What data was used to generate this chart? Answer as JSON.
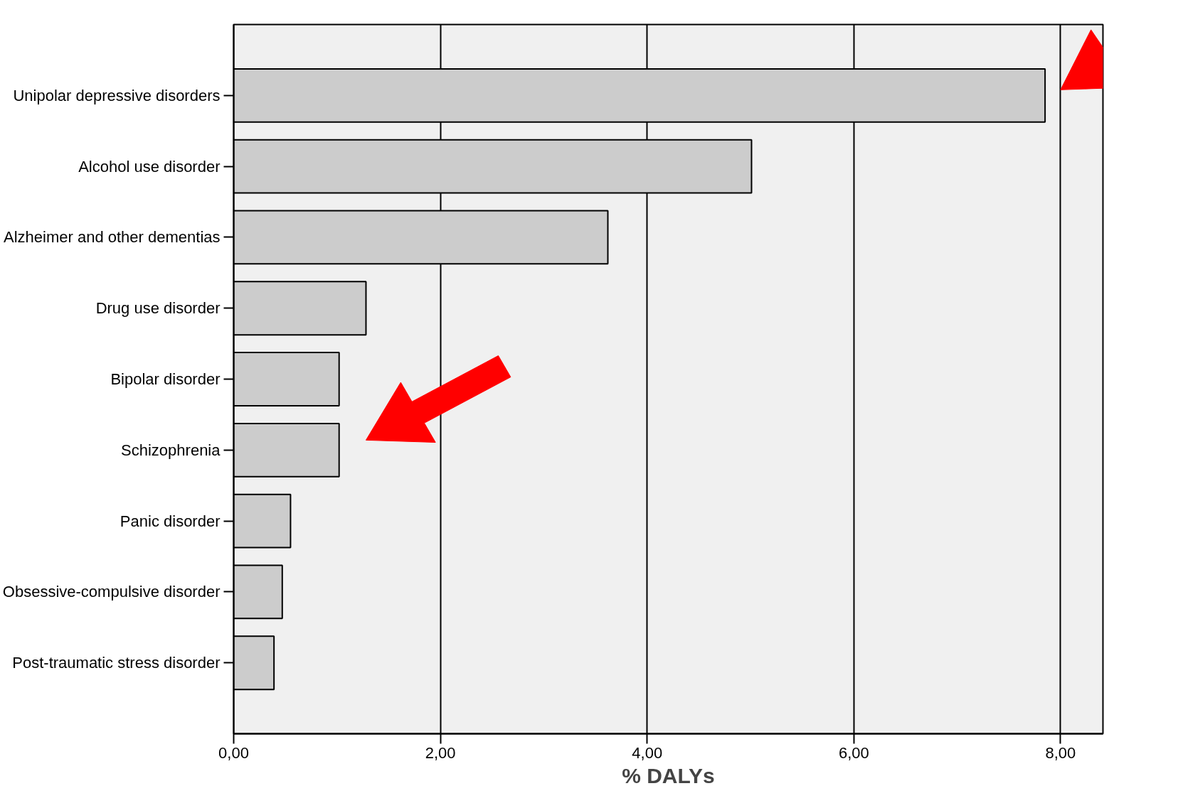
{
  "chart_data": {
    "type": "bar",
    "orientation": "horizontal",
    "xlabel": "% DALYs",
    "categories": [
      "Unipolar depressive disorders",
      "Alcohol use disorder",
      "Alzheimer and other dementias",
      "Drug use disorder",
      "Bipolar disorder",
      "Schizophrenia",
      "Panic disorder",
      "Obsessive-compulsive disorder",
      "Post-traumatic stress disorder"
    ],
    "values": [
      7.85,
      5.01,
      3.62,
      1.28,
      1.02,
      1.02,
      0.55,
      0.47,
      0.39
    ],
    "color": "#cccccc",
    "xlim": [
      0,
      8.41
    ],
    "xticks": [
      {
        "value": 0,
        "label": "0,00"
      },
      {
        "value": 2,
        "label": "2,00"
      },
      {
        "value": 4,
        "label": "4,00"
      },
      {
        "value": 6,
        "label": "6,00"
      },
      {
        "value": 8,
        "label": "8,00"
      }
    ],
    "grid": "x"
  }
}
